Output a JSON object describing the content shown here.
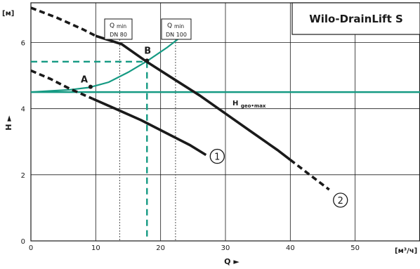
{
  "chart_data": {
    "type": "line",
    "title": "Wilo-DrainLift S",
    "xlabel": "Q ►",
    "ylabel": "H ►",
    "x_unit": "[м³/ч]",
    "y_unit": "[м]",
    "xlim": [
      0,
      60
    ],
    "ylim": [
      0,
      7.2
    ],
    "x_ticks": [
      "0",
      "10",
      "20",
      "30",
      "40",
      "50"
    ],
    "y_ticks": [
      "0",
      "2",
      "4",
      "6"
    ],
    "grid": true,
    "hgeo_label_main": "H",
    "hgeo_label_sub": "geo•max",
    "hgeo_value": 4.5,
    "qmin_lines": [
      {
        "q_label": "Q",
        "min_label": "min",
        "dn_label": "DN 80",
        "x": 13.7
      },
      {
        "q_label": "Q",
        "min_label": "min",
        "dn_label": "DN 100",
        "x": 22.3
      }
    ],
    "series": [
      {
        "label_mark": "1",
        "color": "#1a1a1a",
        "solid": [
          [
            9.5,
            4.3
          ],
          [
            13,
            4.0
          ],
          [
            17,
            3.65
          ],
          [
            21,
            3.25
          ],
          [
            24.5,
            2.9
          ],
          [
            27,
            2.6
          ]
        ],
        "dashed": [
          [
            0,
            5.15
          ],
          [
            3,
            4.9
          ],
          [
            6,
            4.6
          ],
          [
            9.5,
            4.3
          ]
        ]
      },
      {
        "label_mark": "2",
        "color": "#1a1a1a",
        "solid": [
          [
            10,
            6.2
          ],
          [
            14,
            5.95
          ],
          [
            18,
            5.4
          ],
          [
            22,
            4.9
          ],
          [
            26,
            4.4
          ],
          [
            30,
            3.85
          ],
          [
            34,
            3.3
          ],
          [
            38,
            2.75
          ],
          [
            40,
            2.45
          ]
        ],
        "dashed_start": [
          [
            0,
            7.05
          ],
          [
            4,
            6.75
          ],
          [
            8,
            6.4
          ],
          [
            10,
            6.2
          ]
        ],
        "dashed_end": [
          [
            40,
            2.45
          ],
          [
            43,
            2.0
          ],
          [
            46,
            1.55
          ]
        ]
      },
      {
        "label_mark": "",
        "color": "#159a83",
        "solid": [
          [
            0,
            4.5
          ],
          [
            6,
            4.57
          ],
          [
            9,
            4.64
          ],
          [
            12,
            4.8
          ],
          [
            15,
            5.1
          ],
          [
            18,
            5.45
          ],
          [
            21,
            5.85
          ],
          [
            24,
            6.3
          ]
        ]
      }
    ],
    "operating_points": [
      {
        "name": "A",
        "x": 9.2,
        "y": 4.66
      },
      {
        "name": "B",
        "x": 17.9,
        "y": 5.45
      }
    ],
    "duty_lines": {
      "q": 17.9,
      "h": 5.42,
      "color": "#159a83"
    }
  }
}
